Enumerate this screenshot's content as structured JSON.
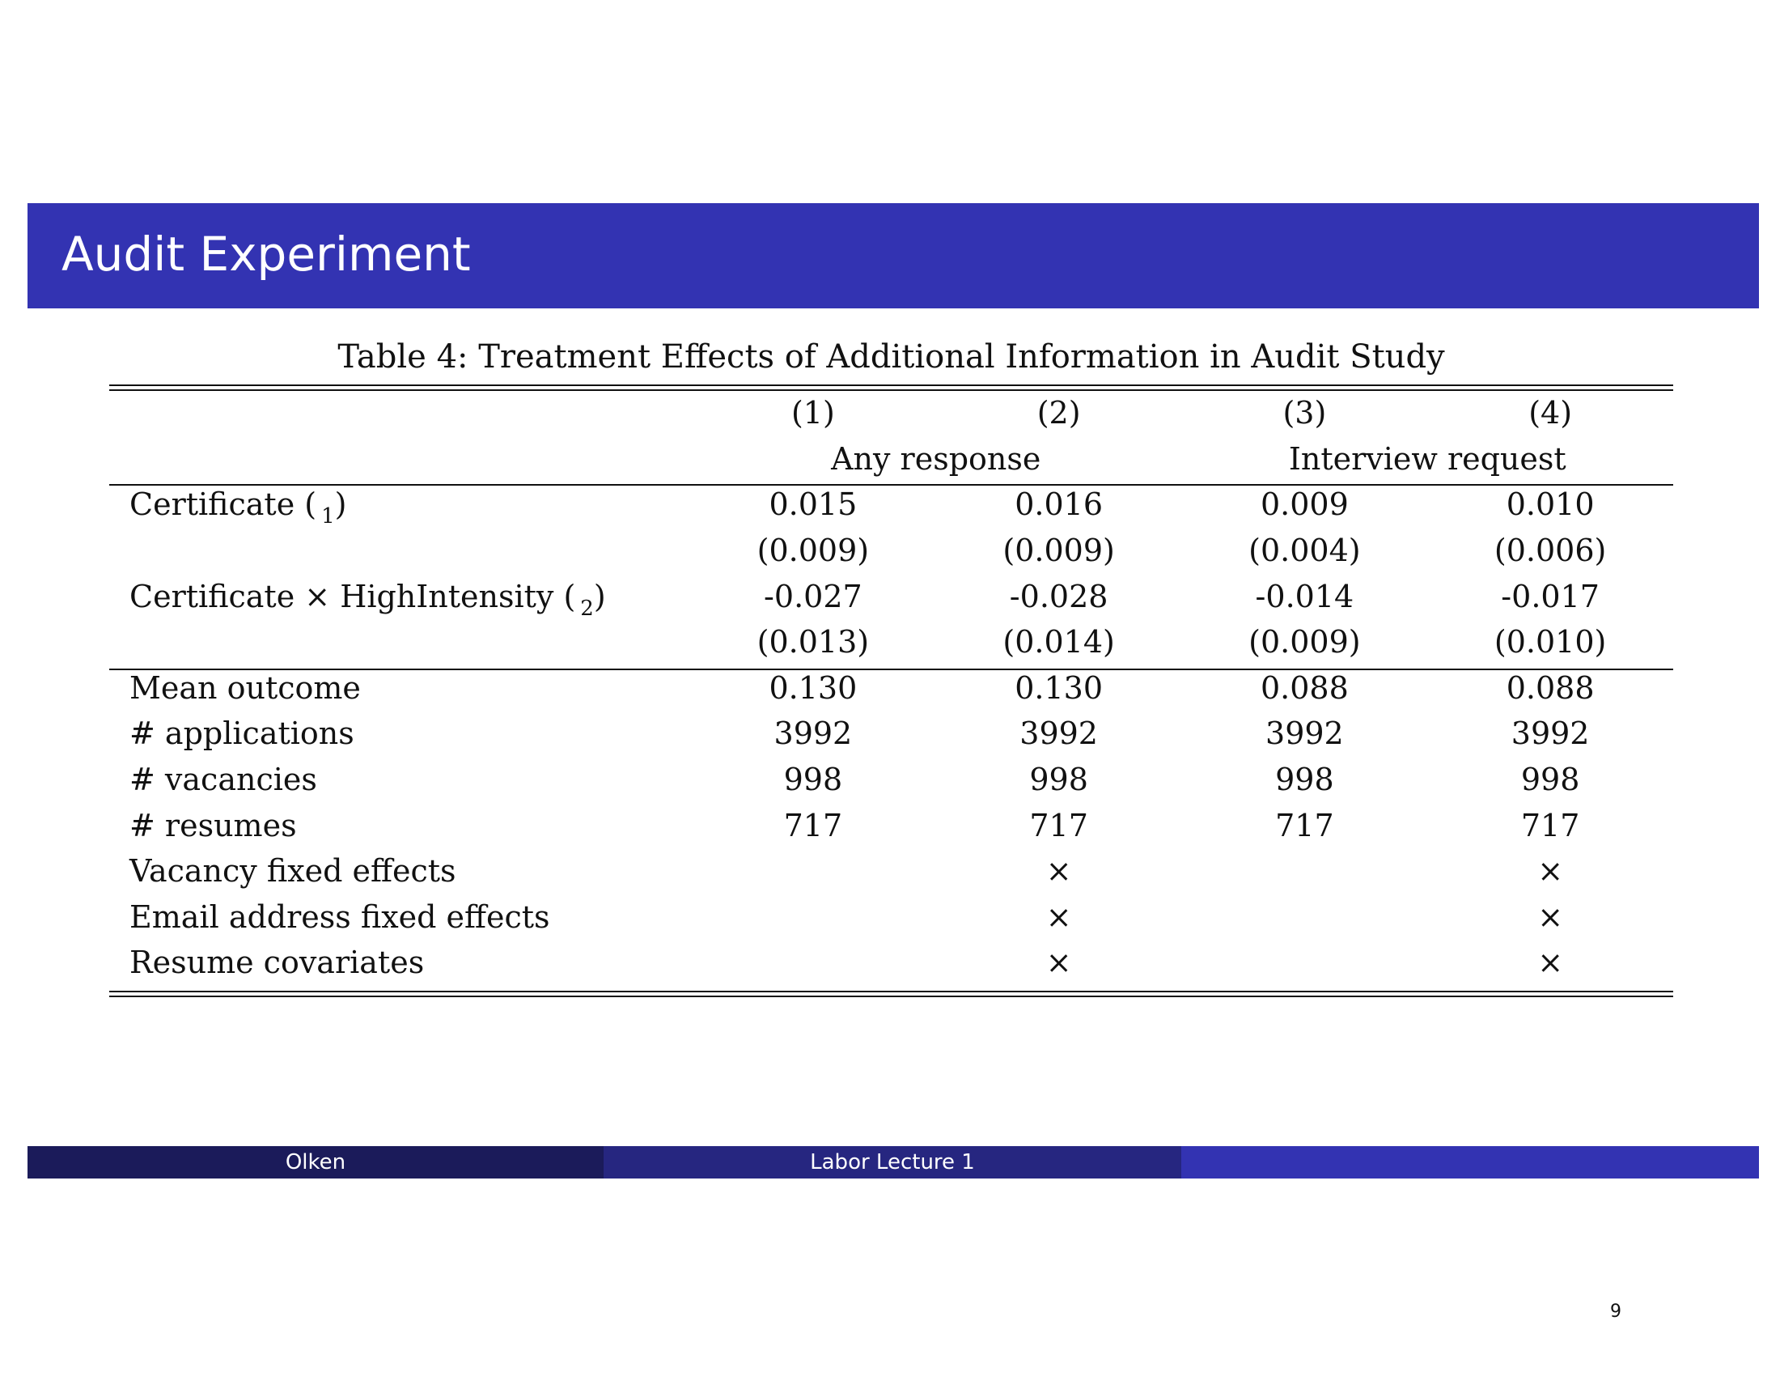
{
  "slide": {
    "title": "Audit Experiment",
    "page_number": "9"
  },
  "table": {
    "caption": "Table 4: Treatment Effects of Additional Information in Audit Study",
    "column_numbers": [
      "(1)",
      "(2)",
      "(3)",
      "(4)"
    ],
    "group_headers": [
      "Any response",
      "Interview request"
    ],
    "coef_rows": [
      {
        "label": "Certificate (",
        "subscript": "1",
        "label_close": ")",
        "values": [
          "0.015",
          "0.016",
          "0.009",
          "0.010"
        ],
        "std_errors": [
          "(0.009)",
          "(0.009)",
          "(0.004)",
          "(0.006)"
        ]
      },
      {
        "label": "Certificate × HighIntensity (",
        "subscript": "2",
        "label_close": ")",
        "values": [
          "-0.027",
          "-0.028",
          "-0.014",
          "-0.017"
        ],
        "std_errors": [
          "(0.013)",
          "(0.014)",
          "(0.009)",
          "(0.010)"
        ]
      }
    ],
    "stat_rows": [
      {
        "label": "Mean outcome",
        "values": [
          "0.130",
          "0.130",
          "0.088",
          "0.088"
        ]
      },
      {
        "label": "# applications",
        "values": [
          "3992",
          "3992",
          "3992",
          "3992"
        ]
      },
      {
        "label": "# vacancies",
        "values": [
          "998",
          "998",
          "998",
          "998"
        ]
      },
      {
        "label": "# resumes",
        "values": [
          "717",
          "717",
          "717",
          "717"
        ]
      },
      {
        "label": "Vacancy fixed effects",
        "values": [
          "",
          "×",
          "",
          "×"
        ]
      },
      {
        "label": "Email address fixed effects",
        "values": [
          "",
          "×",
          "",
          "×"
        ]
      },
      {
        "label": "Resume covariates",
        "values": [
          "",
          "×",
          "",
          "×"
        ]
      }
    ]
  },
  "footer": {
    "author": "Olken",
    "lecture": "Labor Lecture 1"
  },
  "colors": {
    "title_bar": "#3333b2",
    "footer_left": "#1b1b5a",
    "footer_mid": "#262680",
    "footer_right": "#3333b2"
  }
}
